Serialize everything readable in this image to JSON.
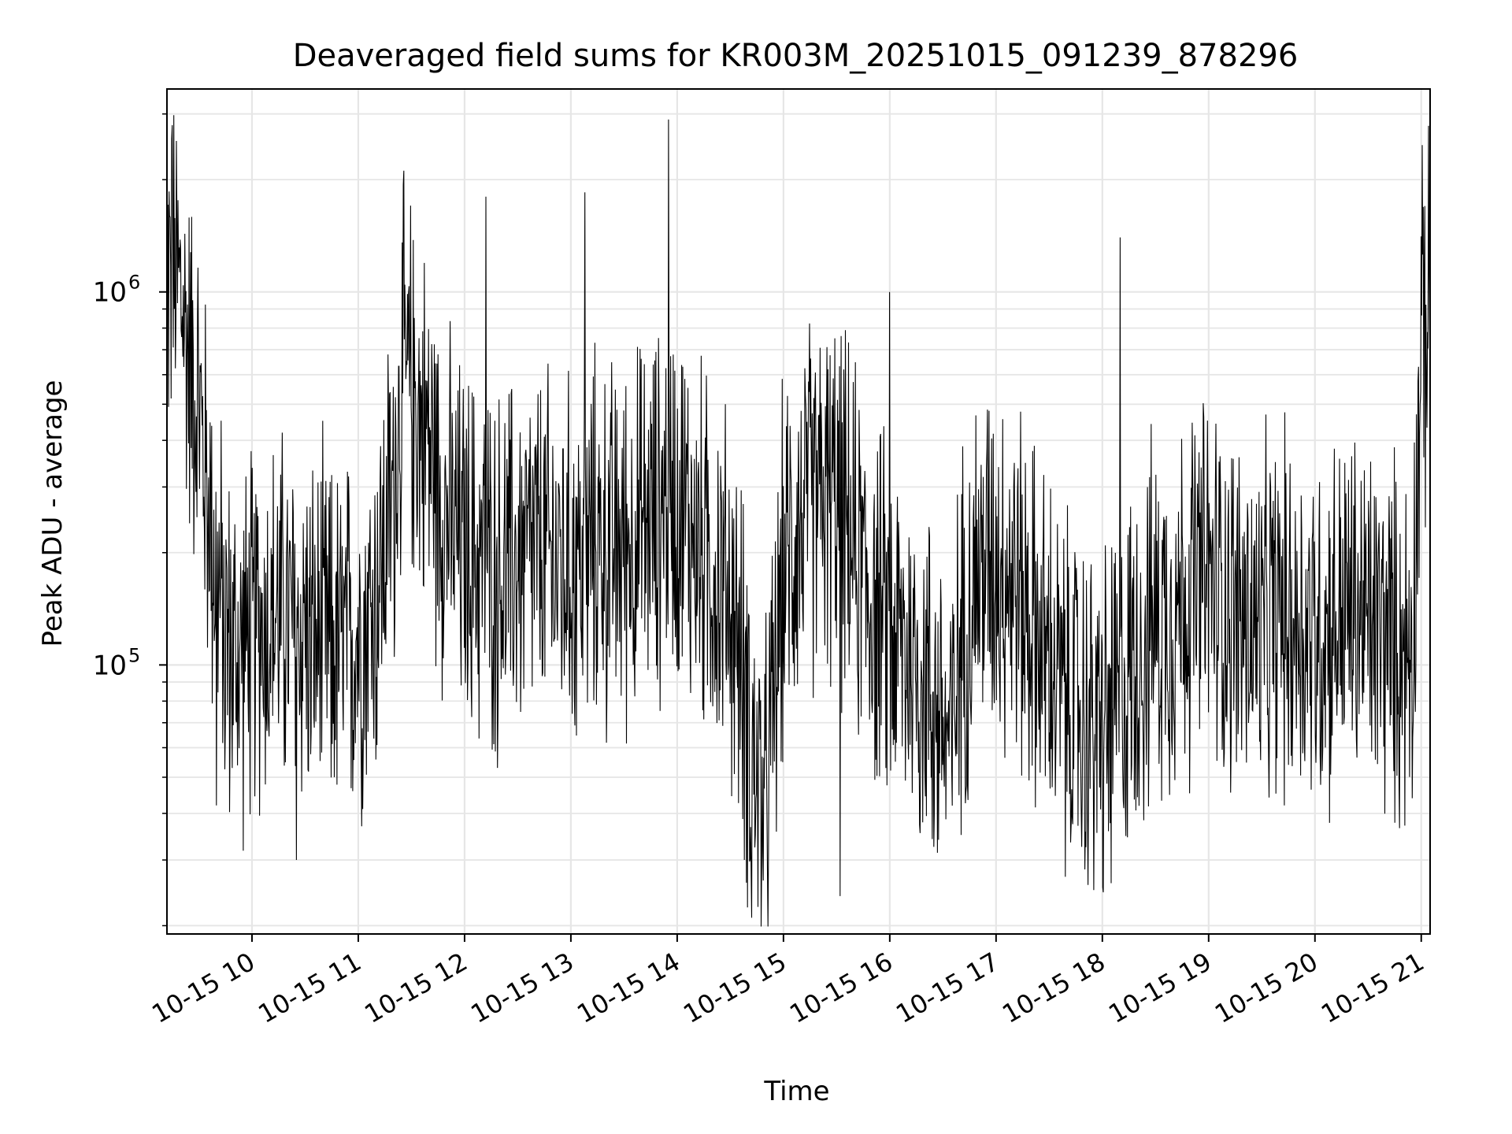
{
  "chart_data": {
    "type": "line",
    "title": "Deaveraged field sums for KR003M_20251015_091239_878296",
    "xlabel": "Time",
    "ylabel": "Peak ADU - average",
    "y_scale": "log",
    "ylim": [
      19000,
      3500000
    ],
    "xlim": [
      "2025-10-15 09:12",
      "2025-10-15 21:05"
    ],
    "grid": true,
    "legend": "none",
    "line_color": "#000000",
    "x_ticks": [
      {
        "t": "2025-10-15 10:00",
        "label": "10-15 10"
      },
      {
        "t": "2025-10-15 11:00",
        "label": "10-15 11"
      },
      {
        "t": "2025-10-15 12:00",
        "label": "10-15 12"
      },
      {
        "t": "2025-10-15 13:00",
        "label": "10-15 13"
      },
      {
        "t": "2025-10-15 14:00",
        "label": "10-15 14"
      },
      {
        "t": "2025-10-15 15:00",
        "label": "10-15 15"
      },
      {
        "t": "2025-10-15 16:00",
        "label": "10-15 16"
      },
      {
        "t": "2025-10-15 17:00",
        "label": "10-15 17"
      },
      {
        "t": "2025-10-15 18:00",
        "label": "10-15 18"
      },
      {
        "t": "2025-10-15 19:00",
        "label": "10-15 19"
      },
      {
        "t": "2025-10-15 20:00",
        "label": "10-15 20"
      },
      {
        "t": "2025-10-15 21:00",
        "label": "10-15 21"
      }
    ],
    "y_ticks": [
      {
        "value": 100000,
        "base": "10",
        "exp": "5"
      },
      {
        "value": 1000000,
        "base": "10",
        "exp": "6"
      }
    ],
    "series": [
      {
        "name": "",
        "x": [
          "2025-10-15 09:12",
          "2025-10-15 09:15",
          "2025-10-15 09:18",
          "2025-10-15 09:21",
          "2025-10-15 09:24",
          "2025-10-15 09:27",
          "2025-10-15 09:30",
          "2025-10-15 09:33",
          "2025-10-15 09:36",
          "2025-10-15 09:39",
          "2025-10-15 09:42",
          "2025-10-15 09:45",
          "2025-10-15 09:48",
          "2025-10-15 09:51",
          "2025-10-15 09:54",
          "2025-10-15 09:57",
          "2025-10-15 10:00",
          "2025-10-15 10:05",
          "2025-10-15 10:10",
          "2025-10-15 10:15",
          "2025-10-15 10:20",
          "2025-10-15 10:25",
          "2025-10-15 10:30",
          "2025-10-15 10:35",
          "2025-10-15 10:40",
          "2025-10-15 10:45",
          "2025-10-15 10:50",
          "2025-10-15 10:55",
          "2025-10-15 11:00",
          "2025-10-15 11:10",
          "2025-10-15 11:20",
          "2025-10-15 11:25",
          "2025-10-15 11:30",
          "2025-10-15 11:35",
          "2025-10-15 11:40",
          "2025-10-15 11:45",
          "2025-10-15 11:50",
          "2025-10-15 11:55",
          "2025-10-15 12:00",
          "2025-10-15 12:10",
          "2025-10-15 12:15",
          "2025-10-15 12:20",
          "2025-10-15 12:30",
          "2025-10-15 12:40",
          "2025-10-15 12:50",
          "2025-10-15 13:00",
          "2025-10-15 13:10",
          "2025-10-15 13:15",
          "2025-10-15 13:20",
          "2025-10-15 13:30",
          "2025-10-15 13:40",
          "2025-10-15 13:50",
          "2025-10-15 13:55",
          "2025-10-15 14:00",
          "2025-10-15 14:10",
          "2025-10-15 14:20",
          "2025-10-15 14:30",
          "2025-10-15 14:35",
          "2025-10-15 14:40",
          "2025-10-15 14:45",
          "2025-10-15 14:50",
          "2025-10-15 15:00",
          "2025-10-15 15:10",
          "2025-10-15 15:20",
          "2025-10-15 15:30",
          "2025-10-15 15:40",
          "2025-10-15 15:50",
          "2025-10-15 16:00",
          "2025-10-15 16:10",
          "2025-10-15 16:20",
          "2025-10-15 16:30",
          "2025-10-15 16:35",
          "2025-10-15 16:40",
          "2025-10-15 16:50",
          "2025-10-15 17:00",
          "2025-10-15 17:10",
          "2025-10-15 17:20",
          "2025-10-15 17:30",
          "2025-10-15 17:40",
          "2025-10-15 17:50",
          "2025-10-15 18:00",
          "2025-10-15 18:10",
          "2025-10-15 18:20",
          "2025-10-15 18:30",
          "2025-10-15 18:40",
          "2025-10-15 18:50",
          "2025-10-15 19:00",
          "2025-10-15 19:10",
          "2025-10-15 19:20",
          "2025-10-15 19:30",
          "2025-10-15 19:40",
          "2025-10-15 19:50",
          "2025-10-15 20:00",
          "2025-10-15 20:10",
          "2025-10-15 20:20",
          "2025-10-15 20:30",
          "2025-10-15 20:40",
          "2025-10-15 20:50",
          "2025-10-15 20:55",
          "2025-10-15 21:00",
          "2025-10-15 21:05"
        ],
        "y": [
          1200000,
          1000000,
          1100000,
          900000,
          700000,
          600000,
          500000,
          350000,
          250000,
          200000,
          150000,
          120000,
          110000,
          105000,
          110000,
          115000,
          120000,
          130000,
          130000,
          140000,
          130000,
          120000,
          130000,
          110000,
          120000,
          110000,
          110000,
          115000,
          120000,
          150000,
          300000,
          600000,
          550000,
          450000,
          400000,
          300000,
          250000,
          220000,
          200000,
          190000,
          180000,
          170000,
          190000,
          200000,
          190000,
          180000,
          200000,
          220000,
          200000,
          210000,
          230000,
          250000,
          300000,
          280000,
          220000,
          180000,
          150000,
          110000,
          70000,
          50000,
          40000,
          180000,
          250000,
          280000,
          270000,
          200000,
          150000,
          120000,
          110000,
          90000,
          70000,
          60000,
          120000,
          180000,
          200000,
          170000,
          130000,
          100000,
          80000,
          70000,
          65000,
          80000,
          110000,
          130000,
          140000,
          160000,
          170000,
          150000,
          130000,
          120000,
          140000,
          130000,
          120000,
          130000,
          140000,
          130000,
          120000,
          110000,
          120000,
          700000,
          800000
        ]
      }
    ],
    "annotations": {
      "noise_amplitude_factor": 4,
      "spike_peaks": [
        {
          "t": "2025-10-15 09:15",
          "y": 2800000
        },
        {
          "t": "2025-10-15 12:12",
          "y": 1800000
        },
        {
          "t": "2025-10-15 13:08",
          "y": 1850000
        },
        {
          "t": "2025-10-15 13:55",
          "y": 2900000
        },
        {
          "t": "2025-10-15 16:00",
          "y": 1000000
        },
        {
          "t": "2025-10-15 18:10",
          "y": 1400000
        },
        {
          "t": "2025-10-15 21:02",
          "y": 1700000
        }
      ],
      "dip_troughs": [
        {
          "t": "2025-10-15 09:40",
          "y": 42000
        },
        {
          "t": "2025-10-15 10:25",
          "y": 30000
        },
        {
          "t": "2025-10-15 14:42",
          "y": 21000
        },
        {
          "t": "2025-10-15 15:32",
          "y": 24000
        },
        {
          "t": "2025-10-15 18:05",
          "y": 26000
        }
      ]
    }
  }
}
